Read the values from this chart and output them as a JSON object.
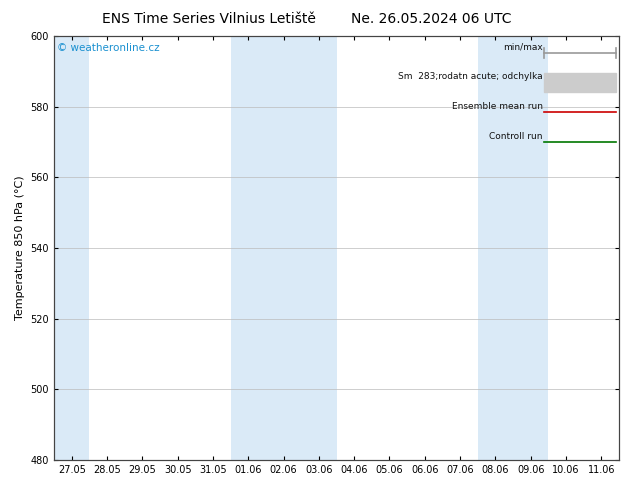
{
  "title": "ENS Time Series Vilnius Letiště",
  "title_right": "Ne. 26.05.2024 06 UTC",
  "ylabel": "Temperature 850 hPa (°C)",
  "watermark": "© weatheronline.cz",
  "ylim": [
    480,
    600
  ],
  "yticks": [
    480,
    500,
    520,
    540,
    560,
    580,
    600
  ],
  "x_tick_labels": [
    "27.05",
    "28.05",
    "29.05",
    "30.05",
    "31.05",
    "01.06",
    "02.06",
    "03.06",
    "04.06",
    "05.06",
    "06.06",
    "07.06",
    "08.06",
    "09.06",
    "10.06",
    "11.06"
  ],
  "plot_bg": "#ffffff",
  "shaded_color": "#daeaf7",
  "shaded_indices": [
    0,
    5,
    6,
    7,
    12,
    13
  ],
  "legend_items": [
    {
      "label": "min/max",
      "color": "#999999",
      "lw": 1.2,
      "style": "minmax"
    },
    {
      "label": "Sm  283;rodatn acute; odchylka",
      "color": "#cccccc",
      "lw": 6,
      "style": "band"
    },
    {
      "label": "Ensemble mean run",
      "color": "#cc0000",
      "lw": 1.2,
      "style": "line"
    },
    {
      "label": "Controll run",
      "color": "#007700",
      "lw": 1.2,
      "style": "line"
    }
  ],
  "title_fontsize": 10,
  "tick_fontsize": 7,
  "ylabel_fontsize": 8,
  "watermark_color": "#1a90d0",
  "watermark_fontsize": 7.5
}
